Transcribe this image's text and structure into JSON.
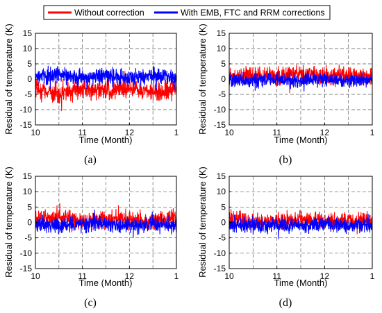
{
  "legend": {
    "entries": [
      {
        "label": "Without correction",
        "color": "#ff0000"
      },
      {
        "label": "With EMB, FTC and RRM corrections",
        "color": "#0000ff"
      }
    ]
  },
  "chart_data": [
    {
      "type": "line",
      "panel_label": "(a)",
      "xlabel": "Time (Month)",
      "ylabel": "Residual of temperature (K)",
      "x_ticks": [
        "10",
        "11",
        "12",
        "1"
      ],
      "xlim": [
        10,
        13
      ],
      "ylim": [
        -15,
        15
      ],
      "y_ticks": [
        -15,
        -10,
        -5,
        0,
        5,
        10,
        15
      ],
      "grid": true,
      "series": [
        {
          "name": "Without correction",
          "color": "#ff0000",
          "mean": -3.5,
          "amplitude": 2.2,
          "x": [
            10.0,
            10.5,
            11.0,
            11.5,
            12.0,
            12.5,
            13.0
          ],
          "y": [
            -3.5,
            -4.5,
            -3.0,
            -4.0,
            -3.0,
            -4.5,
            -3.0
          ]
        },
        {
          "name": "With EMB, FTC and RRM corrections",
          "color": "#0000ff",
          "mean": 0.8,
          "amplitude": 1.8,
          "x": [
            10.0,
            10.5,
            11.0,
            11.5,
            12.0,
            12.5,
            13.0
          ],
          "y": [
            0.5,
            1.5,
            0.5,
            1.0,
            0.5,
            1.0,
            0.5
          ]
        }
      ]
    },
    {
      "type": "line",
      "panel_label": "(b)",
      "xlabel": "Time (Month)",
      "ylabel": "Residual of temperature (K)",
      "x_ticks": [
        "10",
        "11",
        "12",
        "1"
      ],
      "xlim": [
        10,
        13
      ],
      "ylim": [
        -15,
        15
      ],
      "y_ticks": [
        -15,
        -10,
        -5,
        0,
        5,
        10,
        15
      ],
      "grid": true,
      "series": [
        {
          "name": "Without correction",
          "color": "#ff0000",
          "mean": 1.2,
          "amplitude": 2.0,
          "x": [
            10.0,
            10.5,
            11.0,
            11.5,
            12.0,
            12.5,
            13.0
          ],
          "y": [
            1.0,
            1.5,
            1.0,
            2.0,
            1.0,
            1.5,
            0.5
          ]
        },
        {
          "name": "With EMB, FTC and RRM corrections",
          "color": "#0000ff",
          "mean": -0.2,
          "amplitude": 1.5,
          "x": [
            10.0,
            10.5,
            11.0,
            11.5,
            12.0,
            12.5,
            13.0
          ],
          "y": [
            0.0,
            -0.5,
            0.0,
            -0.5,
            0.0,
            -0.5,
            0.0
          ]
        }
      ]
    },
    {
      "type": "line",
      "panel_label": "(c)",
      "xlabel": "Time (Month)",
      "ylabel": "Residual of temperature (K)",
      "x_ticks": [
        "10",
        "11",
        "12",
        "1"
      ],
      "xlim": [
        10,
        13
      ],
      "ylim": [
        -15,
        15
      ],
      "y_ticks": [
        -15,
        -10,
        -5,
        0,
        5,
        10,
        15
      ],
      "grid": true,
      "series": [
        {
          "name": "Without correction",
          "color": "#ff0000",
          "mean": 0.8,
          "amplitude": 1.9,
          "x": [
            10.0,
            10.5,
            11.0,
            11.5,
            12.0,
            12.5,
            13.0
          ],
          "y": [
            1.0,
            1.5,
            0.5,
            1.0,
            1.0,
            0.5,
            1.0
          ]
        },
        {
          "name": "With EMB, FTC and RRM corrections",
          "color": "#0000ff",
          "mean": -0.6,
          "amplitude": 1.6,
          "x": [
            10.0,
            10.5,
            11.0,
            11.5,
            12.0,
            12.5,
            13.0
          ],
          "y": [
            -0.5,
            -1.0,
            -0.5,
            -0.5,
            -1.0,
            -0.5,
            -0.5
          ]
        }
      ]
    },
    {
      "type": "line",
      "panel_label": "(d)",
      "xlabel": "Time (Month)",
      "ylabel": "Residual of temperature (K)",
      "x_ticks": [
        "10",
        "11",
        "12",
        "1"
      ],
      "xlim": [
        10,
        13
      ],
      "ylim": [
        -15,
        15
      ],
      "y_ticks": [
        -15,
        -10,
        -5,
        0,
        5,
        10,
        15
      ],
      "grid": true,
      "series": [
        {
          "name": "Without correction",
          "color": "#ff0000",
          "mean": 0.6,
          "amplitude": 1.8,
          "x": [
            10.0,
            10.5,
            11.0,
            11.5,
            12.0,
            12.5,
            13.0
          ],
          "y": [
            1.0,
            0.5,
            0.5,
            1.0,
            0.5,
            0.5,
            0.5
          ]
        },
        {
          "name": "With EMB, FTC and RRM corrections",
          "color": "#0000ff",
          "mean": -0.8,
          "amplitude": 1.6,
          "x": [
            10.0,
            10.5,
            11.0,
            11.5,
            12.0,
            12.5,
            13.0
          ],
          "y": [
            -0.5,
            -1.0,
            -0.5,
            -1.0,
            -0.5,
            -1.0,
            -1.0
          ]
        }
      ]
    }
  ]
}
